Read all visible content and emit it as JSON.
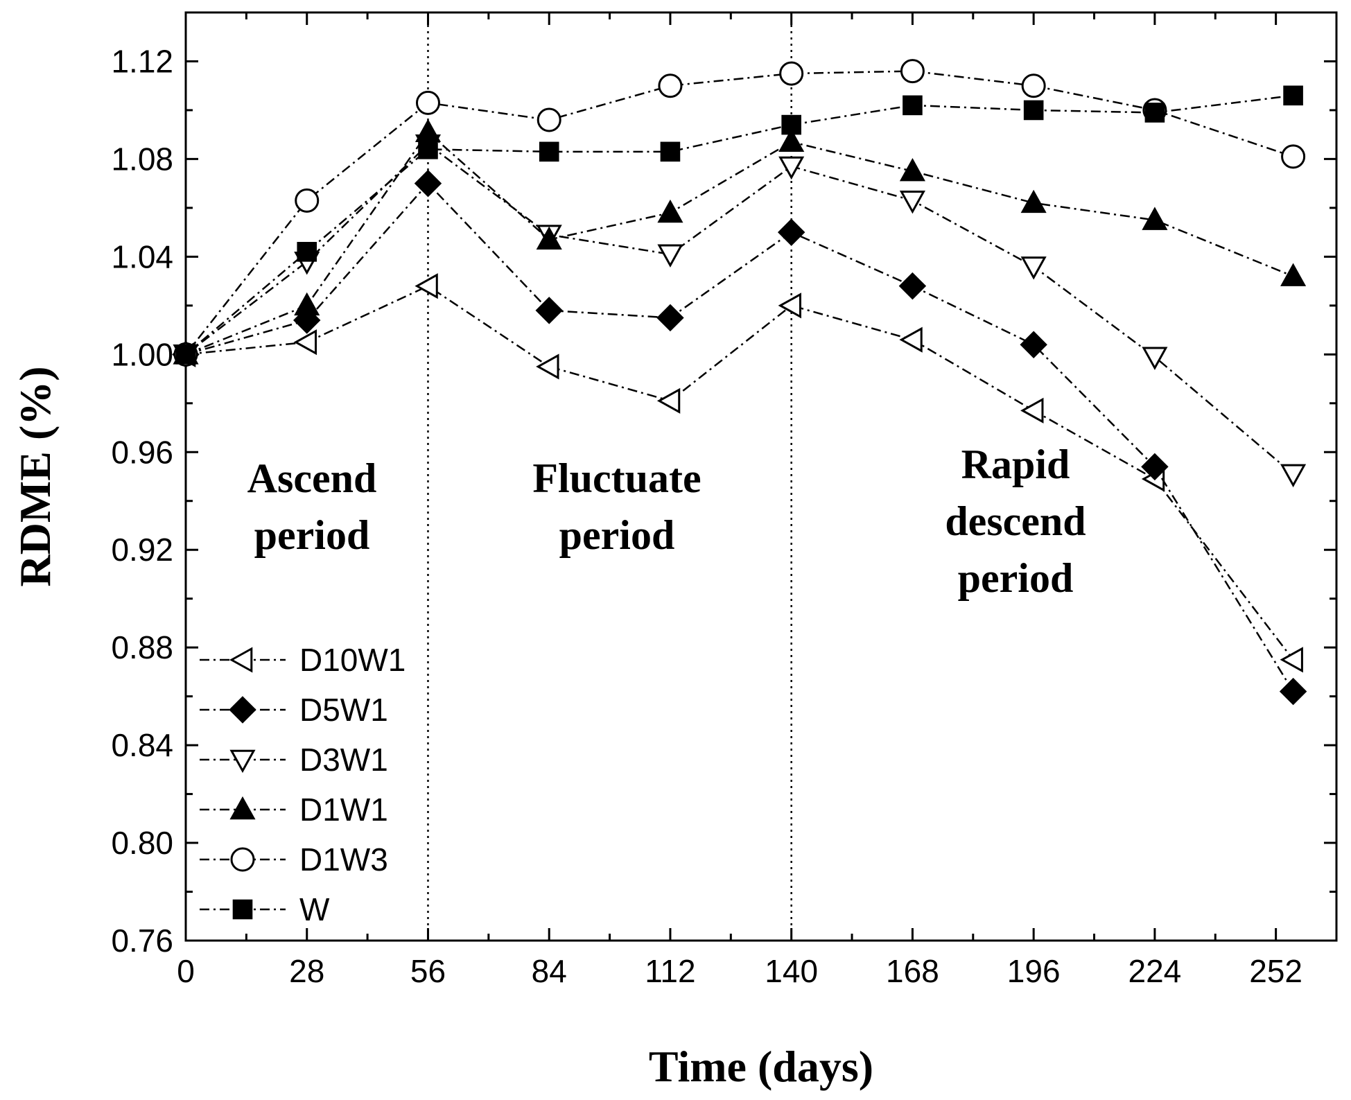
{
  "chart_data": {
    "type": "line",
    "xlabel": "Time (days)",
    "ylabel": "RDME (%)",
    "xlim": [
      0,
      266
    ],
    "ylim": [
      0.76,
      1.14
    ],
    "xticks": [
      0,
      28,
      56,
      84,
      112,
      140,
      168,
      196,
      224,
      252
    ],
    "xtick_labels": [
      "0",
      "28",
      "56",
      "84",
      "112",
      "140",
      "168",
      "196",
      "224",
      "252"
    ],
    "yticks": [
      0.76,
      0.8,
      0.84,
      0.88,
      0.92,
      0.96,
      1.0,
      1.04,
      1.08,
      1.12
    ],
    "ytick_labels": [
      "0.76",
      "0.80",
      "0.84",
      "0.88",
      "0.92",
      "0.96",
      "1.00",
      "1.04",
      "1.08",
      "1.12"
    ],
    "x": [
      0,
      28,
      56,
      84,
      112,
      140,
      168,
      196,
      224,
      256
    ],
    "series": [
      {
        "name": "D10W1",
        "marker": "triangle-left-open",
        "values": [
          1.0,
          1.005,
          1.028,
          0.995,
          0.981,
          1.02,
          1.006,
          0.977,
          0.949,
          0.875
        ]
      },
      {
        "name": "D5W1",
        "marker": "diamond-filled",
        "values": [
          1.0,
          1.014,
          1.07,
          1.018,
          1.015,
          1.05,
          1.028,
          1.004,
          0.954,
          0.862
        ]
      },
      {
        "name": "D3W1",
        "marker": "triangle-down-open",
        "values": [
          1.0,
          1.038,
          1.086,
          1.049,
          1.041,
          1.077,
          1.063,
          1.036,
          0.999,
          0.951
        ]
      },
      {
        "name": "D1W1",
        "marker": "triangle-up-filled",
        "values": [
          1.0,
          1.02,
          1.091,
          1.047,
          1.058,
          1.087,
          1.075,
          1.062,
          1.055,
          1.032
        ]
      },
      {
        "name": "D1W3",
        "marker": "circle-open",
        "values": [
          1.0,
          1.063,
          1.103,
          1.096,
          1.11,
          1.115,
          1.116,
          1.11,
          1.1,
          1.081
        ]
      },
      {
        "name": "W",
        "marker": "square-filled",
        "values": [
          1.0,
          1.042,
          1.084,
          1.083,
          1.083,
          1.094,
          1.102,
          1.1,
          1.099,
          1.106
        ]
      }
    ],
    "vlines": [
      56,
      140
    ],
    "annotations": [
      {
        "lines": [
          "Ascend",
          "period"
        ]
      },
      {
        "lines": [
          "Fluctuate",
          "period"
        ]
      },
      {
        "lines": [
          "Rapid",
          "descend",
          "period"
        ]
      }
    ],
    "legend": "left-lower",
    "grid": false,
    "colors": {
      "line": "#000000",
      "background": "#ffffff"
    }
  }
}
